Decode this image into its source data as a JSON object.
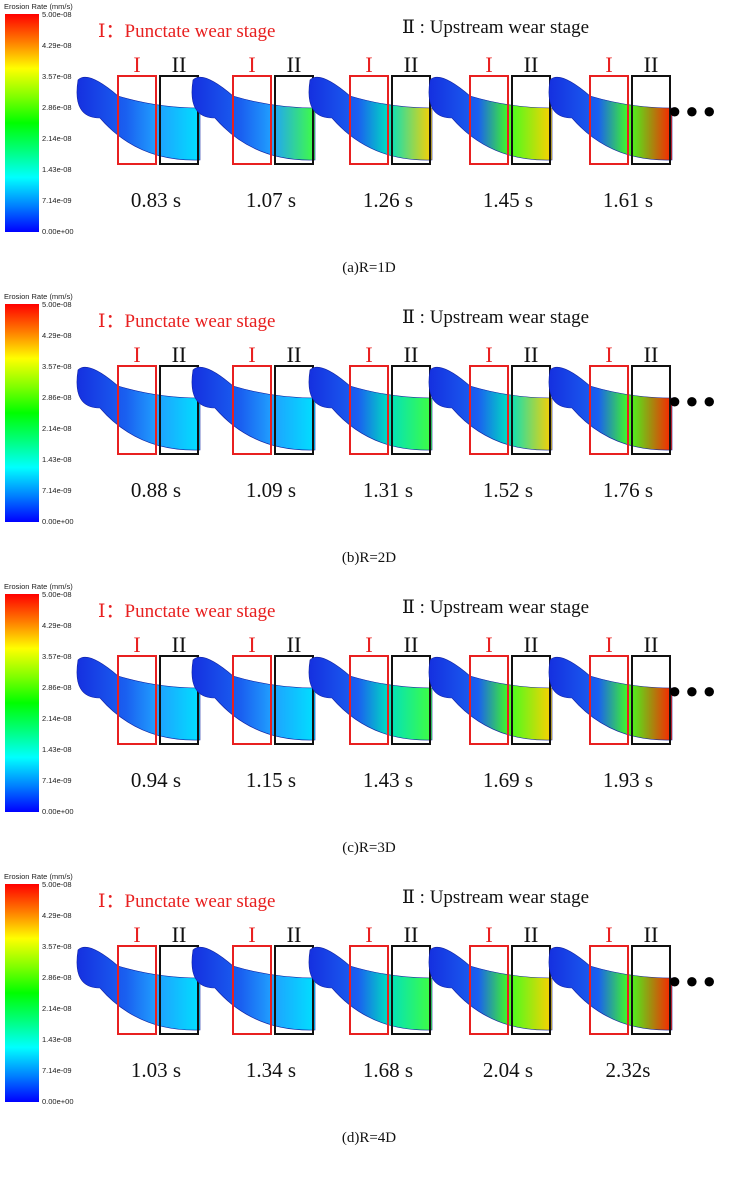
{
  "colorbar": {
    "title": "Erosion Rate (mm/s)",
    "ticks": [
      "5.00e-08",
      "4.29e-08",
      "3.57e-08",
      "2.86e-08",
      "2.14e-08",
      "1.43e-08",
      "7.14e-09",
      "0.00e+00"
    ],
    "gradient": [
      "#ff0000",
      "#ff8000",
      "#ffff00",
      "#80ff00",
      "#00ff00",
      "#00ff80",
      "#00ffff",
      "#0080ff",
      "#0000ff"
    ]
  },
  "labels": {
    "stage_one": "Ⅰ：Punctate wear stage",
    "stage_two": "Ⅱ : Upstream wear stage",
    "box_one": "I",
    "box_two": "II",
    "ellipsis": "●●●"
  },
  "colors": {
    "box_one": "#e82020",
    "box_two": "#111111"
  },
  "panels": [
    {
      "caption": "(a)R=1D",
      "times": [
        "0.83 s",
        "1.07 s",
        "1.26 s",
        "1.45 s",
        "1.61 s"
      ],
      "erosion_levels": [
        0.35,
        0.5,
        0.65,
        0.8,
        0.95
      ]
    },
    {
      "caption": "(b)R=2D",
      "times": [
        "0.88 s",
        "1.09 s",
        "1.31 s",
        "1.52 s",
        "1.76 s"
      ],
      "erosion_levels": [
        0.3,
        0.4,
        0.55,
        0.65,
        0.85
      ]
    },
    {
      "caption": "(c)R=3D",
      "times": [
        "0.94 s",
        "1.15 s",
        "1.43 s",
        "1.69 s",
        "1.93 s"
      ],
      "erosion_levels": [
        0.25,
        0.4,
        0.6,
        0.75,
        0.9
      ]
    },
    {
      "caption": "(d)R=4D",
      "times": [
        "1.03 s",
        "1.34 s",
        "1.68 s",
        "2.04 s",
        "2.32s"
      ],
      "erosion_levels": [
        0.25,
        0.35,
        0.55,
        0.75,
        0.9
      ]
    }
  ]
}
